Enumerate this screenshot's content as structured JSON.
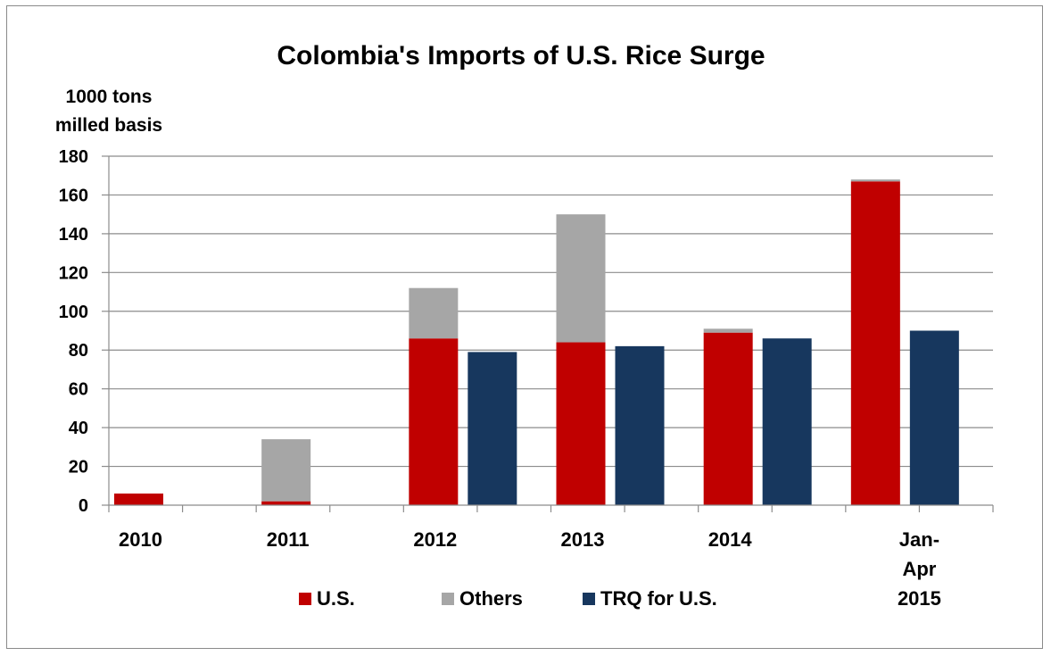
{
  "chart_data": {
    "type": "bar",
    "title": "Colombia's Imports of U.S. Rice Surge",
    "ylabel_lines": [
      "1000 tons",
      "milled basis"
    ],
    "xlabel": "",
    "ylim": [
      0,
      180
    ],
    "yticks": [
      "0",
      "20",
      "40",
      "60",
      "80",
      "100",
      "120",
      "140",
      "160",
      "180"
    ],
    "grid": true,
    "legend_position": "bottom",
    "categories": [
      {
        "label_lines": [
          "2010"
        ]
      },
      {
        "label_lines": [
          "2011"
        ]
      },
      {
        "label_lines": [
          "2012"
        ]
      },
      {
        "label_lines": [
          "2013"
        ]
      },
      {
        "label_lines": [
          "2014"
        ]
      },
      {
        "label_lines": [
          "Jan-",
          "Apr",
          "2015"
        ]
      }
    ],
    "series": [
      {
        "name": "U.S.",
        "color": "#c00000",
        "stack": "imports",
        "values": [
          6,
          2,
          86,
          84,
          89,
          167
        ]
      },
      {
        "name": "Others",
        "color": "#a6a6a6",
        "stack": "imports",
        "values": [
          0,
          32,
          26,
          66,
          2,
          1
        ]
      },
      {
        "name": "TRQ for U.S.",
        "color": "#17375e",
        "stack": "trq",
        "values": [
          null,
          null,
          79,
          82,
          86,
          90
        ]
      }
    ]
  }
}
